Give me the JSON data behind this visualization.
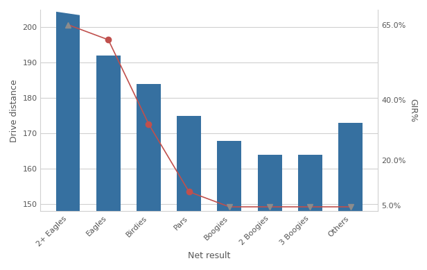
{
  "categories": [
    "2+ Eagles",
    "Eagles",
    "Birdies",
    "Pars",
    "Boogies",
    "2 Boogies",
    "3 Boogies",
    "Others"
  ],
  "bar_values": [
    210,
    192,
    184,
    175,
    168,
    164,
    164,
    173
  ],
  "bar_color": "#3670a0",
  "line_values": [
    65.0,
    60.0,
    32.0,
    9.5,
    4.5,
    4.5,
    4.5,
    4.5
  ],
  "line_color": "#c0504d",
  "line_marker_colors": [
    "#8C8C8C",
    "#c0504d",
    "#c0504d",
    "#c0504d",
    "#8C8C8C",
    "#8C8C8C",
    "#8C8C8C",
    "#8C8C8C"
  ],
  "line_marker_styles": [
    "^",
    "o",
    "o",
    "o",
    "v",
    "v",
    "v",
    "v"
  ],
  "ylim_bar": [
    148,
    205
  ],
  "ylim_line": [
    3.0,
    70.0
  ],
  "yticks_bar": [
    150,
    160,
    170,
    180,
    190,
    200
  ],
  "yticks_line": [
    5.0,
    20.0,
    40.0,
    65.0
  ],
  "ytick_labels_line": [
    "5.0%",
    "20.0%",
    "40.0%",
    "65.0%"
  ],
  "xlabel": "Net result",
  "ylabel_left": "Drive distance",
  "ylabel_right": "GIR%",
  "bg_color": "#ffffff",
  "grid_color": "#d0d0d0"
}
